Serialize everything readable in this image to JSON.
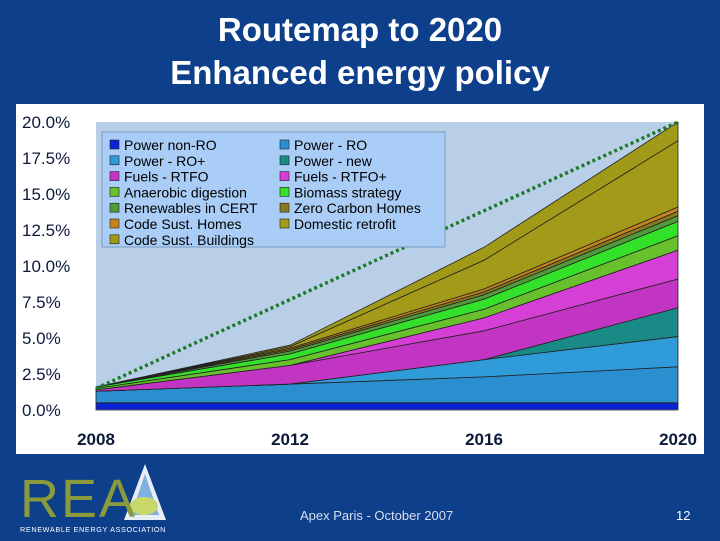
{
  "slide": {
    "title_line1": "Routemap to 2020",
    "title_line2": "Enhanced energy policy",
    "footer": "Apex Paris - October 2007",
    "page_number": "12",
    "logo_letters": "REA",
    "logo_tagline": "RENEWABLE ENERGY ASSOCIATION"
  },
  "chart_data": {
    "type": "area",
    "stacked": true,
    "x": [
      2008,
      2012,
      2016,
      2020
    ],
    "xlim": [
      2008,
      2020
    ],
    "ylim": [
      0,
      20
    ],
    "y_tick_labels": [
      "0.0%",
      "2.5%",
      "5.0%",
      "7.5%",
      "10.0%",
      "12.5%",
      "15.0%",
      "17.5%",
      "20.0%"
    ],
    "x_tick_labels": [
      "2008",
      "2012",
      "2016",
      "2020"
    ],
    "legend_position": "top-left inside",
    "series": [
      {
        "name": "Power non-RO",
        "color": "#0b22d4",
        "values": [
          0.5,
          0.5,
          0.5,
          0.5
        ]
      },
      {
        "name": "Power - RO",
        "color": "#2a8fcf",
        "values": [
          0.8,
          1.3,
          1.8,
          2.5
        ]
      },
      {
        "name": "Power - RO+",
        "color": "#2f9bd8",
        "values": [
          0.0,
          0.0,
          1.2,
          2.1
        ]
      },
      {
        "name": "Power - new",
        "color": "#1a8a86",
        "values": [
          0.0,
          0.0,
          0.0,
          2.0
        ]
      },
      {
        "name": "Fuels - RTFO",
        "color": "#c235c2",
        "values": [
          0.1,
          1.3,
          2.0,
          2.0
        ]
      },
      {
        "name": "Fuels - RTFO+",
        "color": "#d63fd6",
        "values": [
          0.0,
          0.0,
          0.9,
          2.0
        ]
      },
      {
        "name": "Anaerobic digestion",
        "color": "#68c02c",
        "values": [
          0.1,
          0.4,
          0.6,
          1.0
        ]
      },
      {
        "name": "Biomass strategy",
        "color": "#33e02a",
        "values": [
          0.1,
          0.4,
          0.7,
          1.0
        ]
      },
      {
        "name": "Renewables in CERT",
        "color": "#4f9a3a",
        "values": [
          0.0,
          0.2,
          0.3,
          0.4
        ]
      },
      {
        "name": "Zero Carbon Homes",
        "color": "#8a7a22",
        "values": [
          0.0,
          0.1,
          0.2,
          0.3
        ]
      },
      {
        "name": "Code Sust. Homes",
        "color": "#c6841e",
        "values": [
          0.0,
          0.1,
          0.2,
          0.3
        ]
      },
      {
        "name": "Domestic retrofit",
        "color": "#a49a1a",
        "values": [
          0.0,
          0.1,
          2.0,
          4.6
        ]
      },
      {
        "name": "Code Sust. Buildings",
        "color": "#a09a18",
        "values": [
          0.0,
          0.1,
          0.9,
          1.3
        ]
      }
    ],
    "target_line": {
      "style": "dotted",
      "color": "#1e7a2a",
      "from": [
        2008,
        1.5
      ],
      "to": [
        2020,
        20.0
      ]
    }
  },
  "colors": {
    "slide_background": "#0d3f8a",
    "plot_background": "#b9cfe8",
    "legend_background": "#a9cdf6"
  }
}
